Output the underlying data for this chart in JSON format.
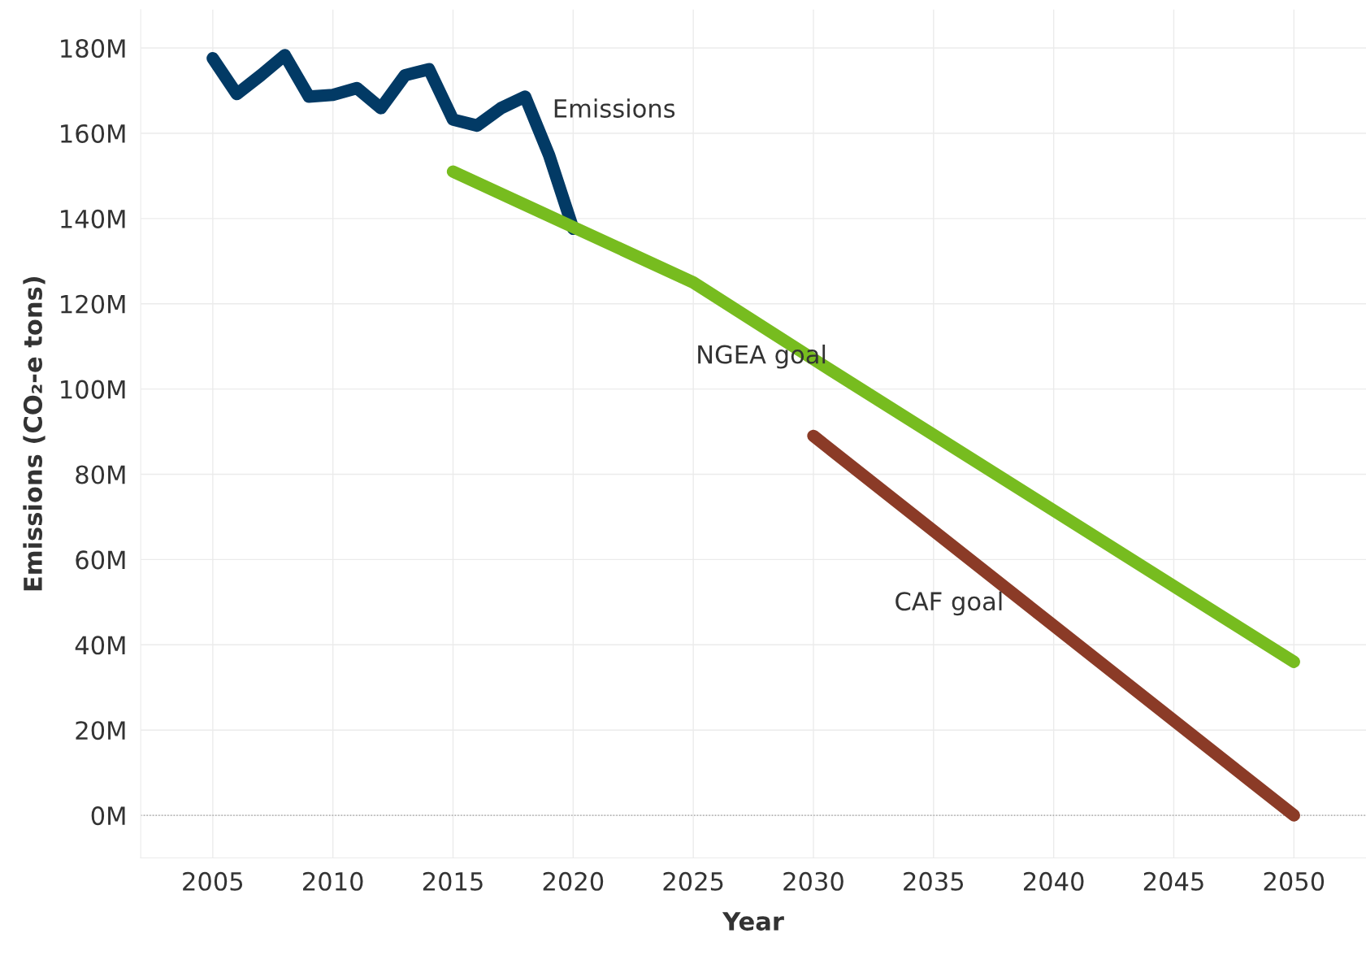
{
  "chart_data": {
    "type": "line",
    "xlabel": "Year",
    "ylabel": "Emissions (CO₂-e tons)",
    "series": [
      {
        "name": "Emissions",
        "color": "#023a65",
        "x": [
          2005,
          2006,
          2007,
          2008,
          2009,
          2010,
          2011,
          2012,
          2013,
          2014,
          2015,
          2016,
          2017,
          2018,
          2019,
          2020
        ],
        "values": [
          177.6,
          169.2,
          173.6,
          178.3,
          168.6,
          169.0,
          170.6,
          165.9,
          173.6,
          175.0,
          163.2,
          161.8,
          165.9,
          168.6,
          154.8,
          137.6
        ]
      },
      {
        "name": "NGEA goal",
        "color": "#77bc1f",
        "x": [
          2015,
          2020,
          2025,
          2030,
          2050
        ],
        "values": [
          151,
          138,
          125,
          107,
          36
        ]
      },
      {
        "name": "CAF goal",
        "color": "#8b3b27",
        "x": [
          2030,
          2050
        ],
        "values": [
          89,
          0
        ]
      }
    ],
    "xlim": [
      2002,
      2053
    ],
    "ylim": [
      -10,
      189
    ],
    "xticks": [
      2005,
      2010,
      2015,
      2020,
      2025,
      2030,
      2035,
      2040,
      2045,
      2050
    ],
    "yticks": [
      {
        "value": 0,
        "label": "0M"
      },
      {
        "value": 20,
        "label": "20M"
      },
      {
        "value": 40,
        "label": "40M"
      },
      {
        "value": 60,
        "label": "60M"
      },
      {
        "value": 80,
        "label": "80M"
      },
      {
        "value": 100,
        "label": "100M"
      },
      {
        "value": 120,
        "label": "120M"
      },
      {
        "value": 140,
        "label": "140M"
      },
      {
        "value": 160,
        "label": "160M"
      },
      {
        "value": 180,
        "label": "180M"
      }
    ],
    "ref_lines": [
      {
        "axis": "y",
        "value": 0,
        "color": "#999999",
        "line_style": "dotted"
      }
    ],
    "grid": true,
    "legend": false,
    "line_style": "solid"
  }
}
